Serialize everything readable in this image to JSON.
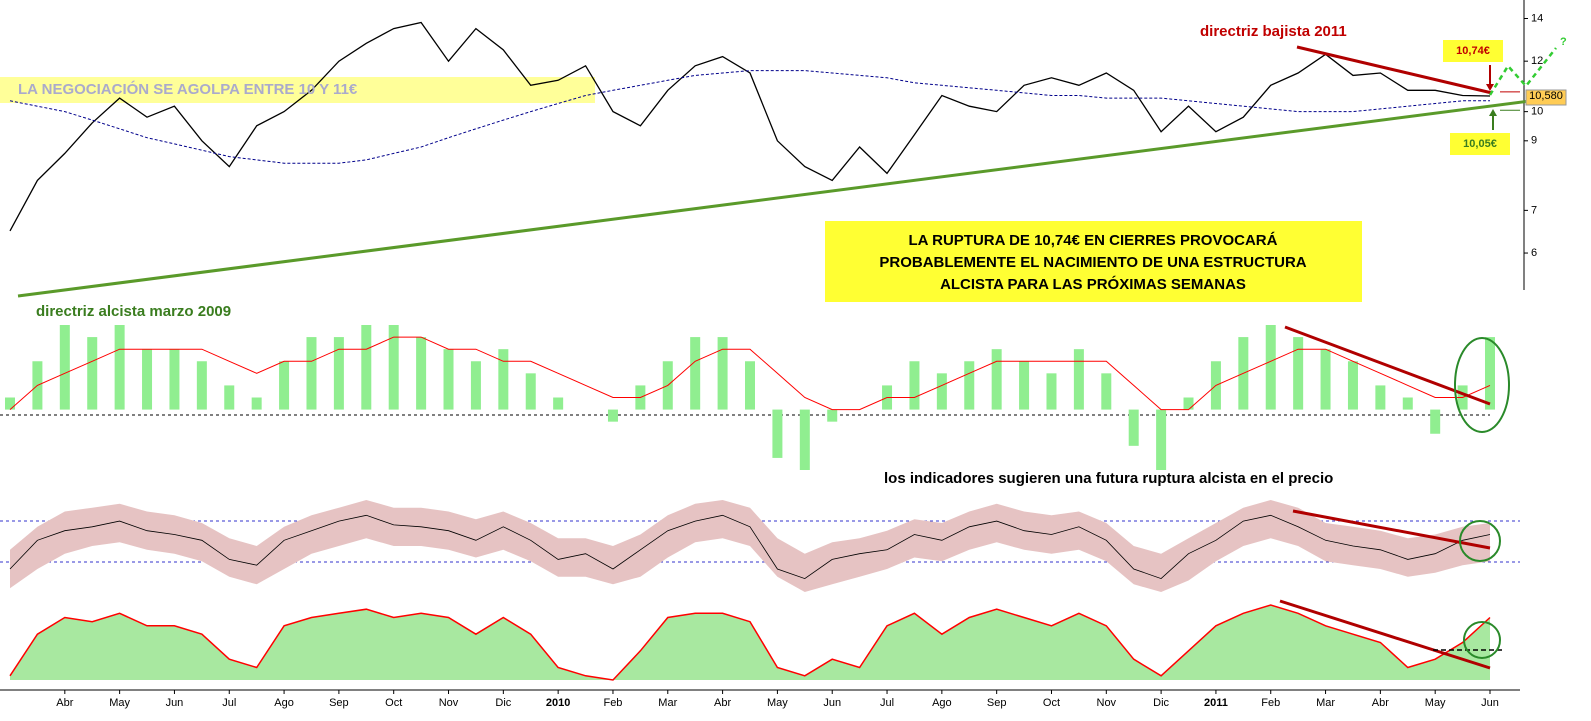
{
  "chart_data": [
    {
      "type": "line",
      "log_scale": true,
      "categories": [
        null,
        null,
        "Abr",
        null,
        "May",
        null,
        "Jun",
        null,
        "Jul",
        null,
        "Ago",
        null,
        "Sep",
        null,
        "Oct",
        null,
        "Nov",
        null,
        "Dic",
        null,
        "2010",
        null,
        "Feb",
        null,
        "Mar",
        null,
        "Abr",
        null,
        "May",
        null,
        "Jun",
        null,
        "Jul",
        null,
        "Ago",
        null,
        "Sep",
        null,
        "Oct",
        null,
        "Nov",
        null,
        "Dic",
        null,
        "2011",
        null,
        "Feb",
        null,
        "Mar",
        null,
        "Abr",
        null,
        "May",
        null,
        "Jun"
      ],
      "series": [
        {
          "color": "#000000",
          "values": [
            6.5,
            7.8,
            8.6,
            9.6,
            10.5,
            9.8,
            10.2,
            9.0,
            8.2,
            9.5,
            10.0,
            10.8,
            12.0,
            12.8,
            13.5,
            13.8,
            12.0,
            13.5,
            12.5,
            11.0,
            11.2,
            11.8,
            10.0,
            9.5,
            10.8,
            11.8,
            12.2,
            11.5,
            9.0,
            8.2,
            7.8,
            8.8,
            8.0,
            9.2,
            10.6,
            10.2,
            10.0,
            11.0,
            11.3,
            11.0,
            11.5,
            10.8,
            9.3,
            10.2,
            9.3,
            9.8,
            11.0,
            11.5,
            12.3,
            11.4,
            11.5,
            10.8,
            10.8,
            10.6,
            10.58
          ]
        },
        {
          "color": "#00008b",
          "style": "dashed",
          "values": [
            10.4,
            10.2,
            10.0,
            9.7,
            9.4,
            9.1,
            8.9,
            8.7,
            8.5,
            8.4,
            8.3,
            8.3,
            8.3,
            8.4,
            8.6,
            8.8,
            9.1,
            9.4,
            9.7,
            10.0,
            10.3,
            10.6,
            10.8,
            11.0,
            11.2,
            11.4,
            11.5,
            11.6,
            11.6,
            11.6,
            11.5,
            11.4,
            11.3,
            11.1,
            11.0,
            10.9,
            10.8,
            10.7,
            10.6,
            10.6,
            10.5,
            10.5,
            10.5,
            10.4,
            10.3,
            10.2,
            10.1,
            10.0,
            10.0,
            10.0,
            10.1,
            10.2,
            10.3,
            10.4,
            10.4
          ]
        }
      ],
      "ylim": [
        5.25,
        14.7
      ],
      "yticks": [
        6,
        7,
        9,
        10,
        12,
        14
      ],
      "annotations": {
        "trend_down": "directriz bajista 2011",
        "resistance": {
          "value": 10.74,
          "label": "10,74€"
        },
        "support": {
          "value": 10.05,
          "label": "10,05€"
        },
        "last_price": {
          "value": 10.58,
          "label": "10,580"
        },
        "volume_note": "LA NEGOCIACIÓN SE AGOLPA ENTRE 10 Y 11€",
        "trend_up": "directriz alcista marzo 2009",
        "conclusion": [
          "LA RUPTURA DE 10,74€ EN CIERRES PROVOCARÁ",
          "PROBABLEMENTE EL NACIMIENTO DE UNA ESTRUCTURA",
          "ALCISTA PARA LAS PRÓXIMAS SEMANAS"
        ],
        "indicator_note": "los indicadores sugieren una futura ruptura alcista en el precio"
      }
    },
    {
      "type": "bar",
      "series": [
        {
          "color": "#90ee90",
          "values": [
            1,
            4,
            7,
            6,
            7,
            5,
            5,
            4,
            2,
            1,
            4,
            6,
            6,
            7,
            7,
            6,
            5,
            4,
            5,
            3,
            1,
            0,
            -1,
            2,
            4,
            6,
            6,
            4,
            -4,
            -5,
            -1,
            0,
            2,
            4,
            3,
            4,
            5,
            4,
            3,
            5,
            3,
            -3,
            -5,
            1,
            4,
            6,
            7,
            6,
            5,
            4,
            2,
            1,
            -2,
            2,
            6
          ]
        },
        {
          "color": "#ff0000",
          "values": [
            0,
            2,
            3,
            4,
            5,
            5,
            5,
            5,
            4,
            3,
            4,
            4,
            5,
            5,
            6,
            6,
            5,
            5,
            4,
            4,
            3,
            2,
            1,
            1,
            2,
            4,
            5,
            5,
            3,
            1,
            0,
            0,
            1,
            1,
            2,
            3,
            4,
            4,
            4,
            4,
            4,
            2,
            0,
            0,
            2,
            3,
            4,
            5,
            5,
            4,
            3,
            2,
            1,
            1,
            2
          ]
        }
      ]
    },
    {
      "type": "range",
      "series": [
        {
          "color": "#000000",
          "values": [
            40,
            55,
            60,
            62,
            65,
            60,
            58,
            55,
            45,
            42,
            55,
            60,
            65,
            68,
            63,
            62,
            60,
            55,
            62,
            55,
            45,
            48,
            40,
            50,
            60,
            65,
            68,
            62,
            40,
            35,
            45,
            48,
            50,
            58,
            55,
            62,
            65,
            60,
            58,
            62,
            55,
            40,
            35,
            48,
            55,
            65,
            68,
            62,
            55,
            52,
            50,
            45,
            48,
            55,
            58
          ]
        },
        {
          "color": "#e6c3c3",
          "values": [
            50,
            62,
            70,
            72,
            74,
            70,
            68,
            64,
            56,
            52,
            62,
            68,
            72,
            76,
            72,
            72,
            70,
            66,
            70,
            64,
            56,
            56,
            52,
            58,
            68,
            74,
            76,
            72,
            56,
            48,
            54,
            56,
            60,
            66,
            64,
            70,
            74,
            70,
            68,
            70,
            64,
            52,
            48,
            56,
            64,
            72,
            76,
            72,
            64,
            62,
            60,
            56,
            58,
            62,
            64
          ]
        },
        {
          "color": "#e6c3c3",
          "values": [
            30,
            40,
            48,
            52,
            54,
            50,
            48,
            44,
            36,
            32,
            40,
            48,
            52,
            56,
            52,
            52,
            50,
            46,
            50,
            44,
            36,
            36,
            32,
            36,
            46,
            54,
            56,
            52,
            36,
            28,
            32,
            36,
            40,
            46,
            44,
            50,
            54,
            50,
            48,
            50,
            44,
            32,
            28,
            34,
            44,
            52,
            56,
            52,
            44,
            42,
            40,
            36,
            38,
            42,
            44
          ]
        }
      ]
    },
    {
      "type": "area",
      "series": [
        {
          "color": "#ff0000",
          "fill": "#a8e8a0",
          "values": [
            10,
            60,
            80,
            75,
            85,
            70,
            70,
            60,
            30,
            20,
            70,
            80,
            85,
            90,
            80,
            85,
            80,
            60,
            80,
            60,
            20,
            10,
            5,
            40,
            80,
            85,
            85,
            75,
            20,
            10,
            30,
            20,
            70,
            85,
            60,
            80,
            90,
            80,
            70,
            85,
            70,
            30,
            10,
            40,
            70,
            85,
            95,
            85,
            70,
            60,
            50,
            20,
            30,
            50,
            80
          ]
        }
      ]
    }
  ]
}
